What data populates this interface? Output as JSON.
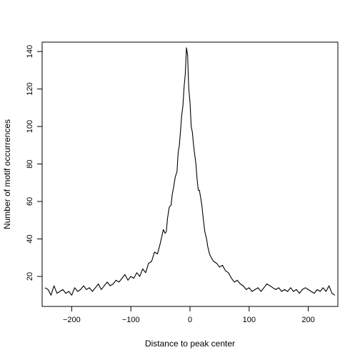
{
  "chart_data": {
    "type": "line",
    "title": "",
    "xlabel": "Distance to peak center",
    "ylabel": "Number of motif occurrences",
    "xlim": [
      -250,
      250
    ],
    "ylim": [
      4,
      145
    ],
    "xticks": [
      -200,
      -100,
      0,
      100,
      200
    ],
    "yticks": [
      20,
      40,
      60,
      80,
      100,
      120,
      140
    ],
    "grid": false,
    "series": [
      {
        "color": "#000000",
        "x": [
          -245,
          -240,
          -235,
          -230,
          -225,
          -220,
          -215,
          -210,
          -205,
          -200,
          -195,
          -190,
          -185,
          -180,
          -175,
          -170,
          -165,
          -160,
          -155,
          -150,
          -145,
          -140,
          -135,
          -130,
          -125,
          -120,
          -115,
          -110,
          -105,
          -100,
          -95,
          -90,
          -85,
          -80,
          -75,
          -70,
          -65,
          -60,
          -55,
          -50,
          -45,
          -42,
          -40,
          -38,
          -35,
          -32,
          -30,
          -28,
          -25,
          -22,
          -20,
          -18,
          -16,
          -14,
          -12,
          -10,
          -8,
          -6,
          -4,
          -3,
          -2,
          0,
          2,
          4,
          6,
          8,
          10,
          12,
          14,
          16,
          18,
          20,
          22,
          25,
          28,
          30,
          33,
          36,
          40,
          45,
          50,
          55,
          60,
          65,
          70,
          75,
          80,
          85,
          90,
          95,
          100,
          105,
          110,
          115,
          120,
          125,
          130,
          135,
          140,
          145,
          150,
          155,
          160,
          165,
          170,
          175,
          180,
          185,
          190,
          195,
          200,
          205,
          210,
          215,
          220,
          225,
          230,
          235,
          240,
          245
        ],
        "y": [
          14,
          13,
          10,
          15,
          11,
          12,
          13,
          11,
          12,
          10,
          14,
          12,
          13,
          15,
          13,
          14,
          12,
          14,
          16,
          13,
          15,
          17,
          15,
          16,
          18,
          17,
          19,
          21,
          18,
          20,
          19,
          22,
          20,
          24,
          22,
          27,
          28,
          33,
          32,
          38,
          45,
          43,
          44,
          51,
          57,
          58,
          64,
          67,
          73,
          76,
          86,
          90,
          98,
          106,
          111,
          121,
          128,
          142,
          138,
          128,
          120,
          113,
          100,
          97,
          90,
          85,
          80,
          72,
          66,
          66,
          62,
          58,
          52,
          44,
          40,
          36,
          32,
          30,
          28,
          27,
          25,
          26,
          23,
          22,
          19,
          17,
          18,
          16,
          15,
          13,
          14,
          12,
          13,
          14,
          12,
          14,
          16,
          15,
          14,
          13,
          14,
          12,
          13,
          12,
          14,
          12,
          13,
          11,
          13,
          14,
          13,
          12,
          11,
          13,
          12,
          14,
          12,
          15,
          11,
          10
        ]
      }
    ]
  }
}
